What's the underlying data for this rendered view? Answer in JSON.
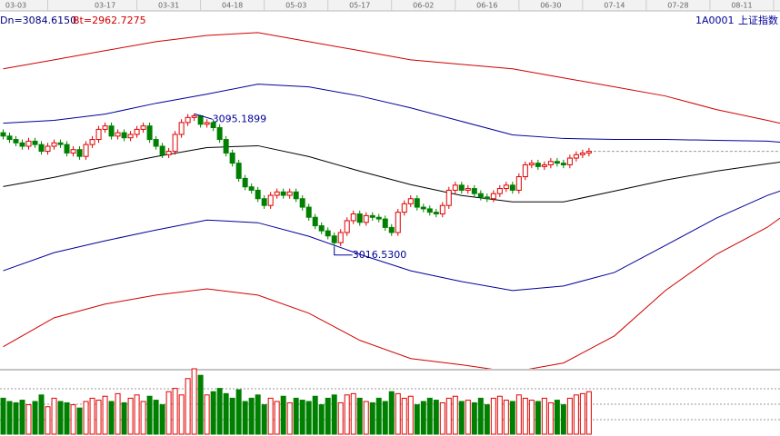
{
  "chart_data": {
    "type": "candlestick",
    "code": "1A0001",
    "name": "上证指数",
    "header_labels": [
      {
        "text": "Dn=3084.6150",
        "color": "#000080"
      },
      {
        "text": "Bt=2962.7275",
        "color": "#d00000"
      }
    ],
    "annotations": [
      "3095.1899",
      "3016.5300"
    ],
    "xlim": [
      -0.5,
      122
    ],
    "ylim": [
      2945,
      3156
    ],
    "vlim": [
      0,
      100
    ],
    "up_color": "#e00000",
    "down_color": "#008000",
    "xticks": [
      {
        "value": 2,
        "label": "03-03"
      },
      {
        "value": 16,
        "label": "03-17"
      },
      {
        "value": 26,
        "label": "03-31"
      },
      {
        "value": 36,
        "label": "04-18"
      },
      {
        "value": 46,
        "label": "05-03"
      },
      {
        "value": 56,
        "label": "05-17"
      },
      {
        "value": 66,
        "label": "06-02"
      },
      {
        "value": 76,
        "label": "06-16"
      },
      {
        "value": 86,
        "label": "06-30"
      },
      {
        "value": 96,
        "label": "07-14"
      },
      {
        "value": 106,
        "label": "07-28"
      },
      {
        "value": 116,
        "label": "08-11"
      }
    ],
    "open": [
      3084,
      3082,
      3080,
      3078,
      3076,
      3079,
      3077,
      3073,
      3076,
      3078,
      3077,
      3072,
      3074,
      3070,
      3077,
      3080,
      3086,
      3088,
      3082,
      3084,
      3081,
      3083,
      3086,
      3088,
      3080,
      3076,
      3071,
      3073,
      3083,
      3090,
      3093,
      3094,
      3089,
      3090,
      3087,
      3080,
      3072,
      3066,
      3057,
      3052,
      3050,
      3045,
      3041,
      3047,
      3049,
      3047,
      3049,
      3045,
      3040,
      3034,
      3029,
      3026,
      3023,
      3019,
      3025,
      3032,
      3036,
      3031,
      3035,
      3034,
      3033,
      3028,
      3025,
      3037,
      3042,
      3045,
      3040,
      3039,
      3037,
      3036,
      3041,
      3050,
      3053,
      3050,
      3051,
      3048,
      3046,
      3045,
      3048,
      3051,
      3053,
      3050,
      3058,
      3065,
      3066,
      3064,
      3065,
      3067,
      3066,
      3065,
      3069,
      3071,
      3072
    ],
    "high": [
      3086,
      3084,
      3082,
      3080,
      3081,
      3081,
      3079,
      3078,
      3080,
      3080,
      3079,
      3076,
      3076,
      3079,
      3082,
      3088,
      3090,
      3090,
      3086,
      3086,
      3085,
      3088,
      3090,
      3090,
      3082,
      3078,
      3075,
      3085,
      3092,
      3095,
      3095.1899,
      3094.5,
      3092,
      3092,
      3089,
      3082,
      3074,
      3068,
      3059,
      3054,
      3052,
      3047,
      3049,
      3051,
      3051,
      3051,
      3051,
      3047,
      3042,
      3036,
      3031,
      3028,
      3025,
      3027,
      3034,
      3038,
      3038,
      3037,
      3037,
      3036,
      3035,
      3030,
      3039,
      3044,
      3047,
      3047,
      3042,
      3041,
      3039,
      3043,
      3052,
      3055,
      3055,
      3053,
      3053,
      3050,
      3048,
      3050,
      3053,
      3055,
      3055,
      3060,
      3067,
      3068,
      3068,
      3067,
      3069,
      3069,
      3068,
      3071,
      3073,
      3074,
      3075
    ],
    "low": [
      3080,
      3078,
      3076,
      3074,
      3074,
      3075,
      3071,
      3071,
      3074,
      3075,
      3070,
      3070,
      3068,
      3068,
      3075,
      3078,
      3084,
      3080,
      3080,
      3079,
      3079,
      3081,
      3084,
      3078,
      3074,
      3069,
      3069,
      3071,
      3081,
      3088,
      3091,
      3087,
      3087,
      3085,
      3078,
      3070,
      3064,
      3055,
      3050,
      3048,
      3043,
      3039,
      3039,
      3045,
      3045,
      3045,
      3043,
      3038,
      3032,
      3027,
      3024,
      3021,
      3016.53,
      3017,
      3023,
      3030,
      3029,
      3029,
      3032,
      3031,
      3026,
      3023,
      3023,
      3035,
      3040,
      3038,
      3037,
      3035,
      3034,
      3034,
      3039,
      3048,
      3048,
      3048,
      3046,
      3044,
      3043,
      3043,
      3046,
      3049,
      3048,
      3048,
      3056,
      3063,
      3062,
      3062,
      3063,
      3064,
      3063,
      3063,
      3067,
      3069,
      3070
    ],
    "close": [
      3082,
      3080,
      3078,
      3076,
      3079,
      3077,
      3073,
      3076,
      3078,
      3077,
      3072,
      3074,
      3070,
      3077,
      3080,
      3086,
      3088,
      3082,
      3084,
      3081,
      3083,
      3086,
      3088,
      3080,
      3076,
      3071,
      3073,
      3083,
      3090,
      3093,
      3094,
      3089,
      3090,
      3087,
      3080,
      3072,
      3066,
      3057,
      3052,
      3050,
      3045,
      3041,
      3047,
      3049,
      3047,
      3049,
      3045,
      3040,
      3034,
      3029,
      3026,
      3023,
      3019,
      3025,
      3032,
      3036,
      3031,
      3035,
      3034,
      3033,
      3028,
      3025,
      3037,
      3042,
      3045,
      3040,
      3039,
      3037,
      3036,
      3041,
      3050,
      3053,
      3050,
      3051,
      3048,
      3046,
      3045,
      3048,
      3051,
      3053,
      3050,
      3058,
      3065,
      3066,
      3064,
      3065,
      3067,
      3066,
      3065,
      3069,
      3071,
      3072,
      3073
    ],
    "volume": [
      55,
      50,
      48,
      52,
      45,
      50,
      60,
      42,
      55,
      50,
      48,
      45,
      40,
      50,
      55,
      52,
      58,
      50,
      62,
      48,
      55,
      60,
      50,
      58,
      52,
      45,
      65,
      70,
      60,
      85,
      100,
      90,
      60,
      65,
      70,
      62,
      55,
      68,
      50,
      55,
      60,
      45,
      55,
      50,
      58,
      48,
      55,
      52,
      50,
      58,
      45,
      55,
      60,
      48,
      60,
      62,
      55,
      50,
      48,
      55,
      50,
      65,
      62,
      55,
      58,
      45,
      50,
      55,
      52,
      48,
      55,
      58,
      50,
      52,
      48,
      55,
      45,
      55,
      58,
      52,
      50,
      60,
      55,
      52,
      50,
      55,
      48,
      52,
      45,
      55,
      60,
      62,
      65
    ],
    "line_x": [
      0,
      8,
      16,
      24,
      32,
      40,
      48,
      56,
      64,
      72,
      80,
      88,
      96,
      104,
      112,
      120,
      122
    ],
    "series": [
      {
        "color": "#d00000",
        "values": [
          3121.8,
          3127.1,
          3132.5,
          3137.8,
          3141.5,
          3143.2,
          3137.8,
          3132.5,
          3127.1,
          3124.4,
          3121.8,
          3116.4,
          3111.1,
          3105.7,
          3097.7,
          3091.3,
          3089.6
        ]
      },
      {
        "color": "#000099",
        "values": [
          3089.6,
          3091.3,
          3095,
          3101.4,
          3106.8,
          3112.7,
          3111.1,
          3105.7,
          3098.7,
          3090.7,
          3082.7,
          3080.6,
          3080,
          3080,
          3079.5,
          3079,
          3078.4
        ]
      },
      {
        "color": "#000000",
        "values": [
          3052.2,
          3057.6,
          3064,
          3069.9,
          3075.2,
          3076.3,
          3069.9,
          3061.3,
          3053.3,
          3046.9,
          3043.1,
          3043.1,
          3049.5,
          3056,
          3061.3,
          3065.6,
          3066.6
        ]
      },
      {
        "color": "#000099",
        "values": [
          3002.4,
          3013.1,
          3020.1,
          3026.5,
          3032.4,
          3030.8,
          3022.8,
          3012.1,
          3002.4,
          2996,
          2990.7,
          2993.4,
          3001.4,
          3017.4,
          3033.5,
          3046.9,
          3049.5
        ]
      },
      {
        "color": "#d00000",
        "values": [
          2957.5,
          2974.6,
          2982.7,
          2988,
          2991.7,
          2988,
          2977.3,
          2961.3,
          2950.5,
          2946.8,
          2942.5,
          2947.9,
          2963.9,
          2990.7,
          3012.1,
          3028.1,
          3033.5
        ]
      }
    ]
  }
}
